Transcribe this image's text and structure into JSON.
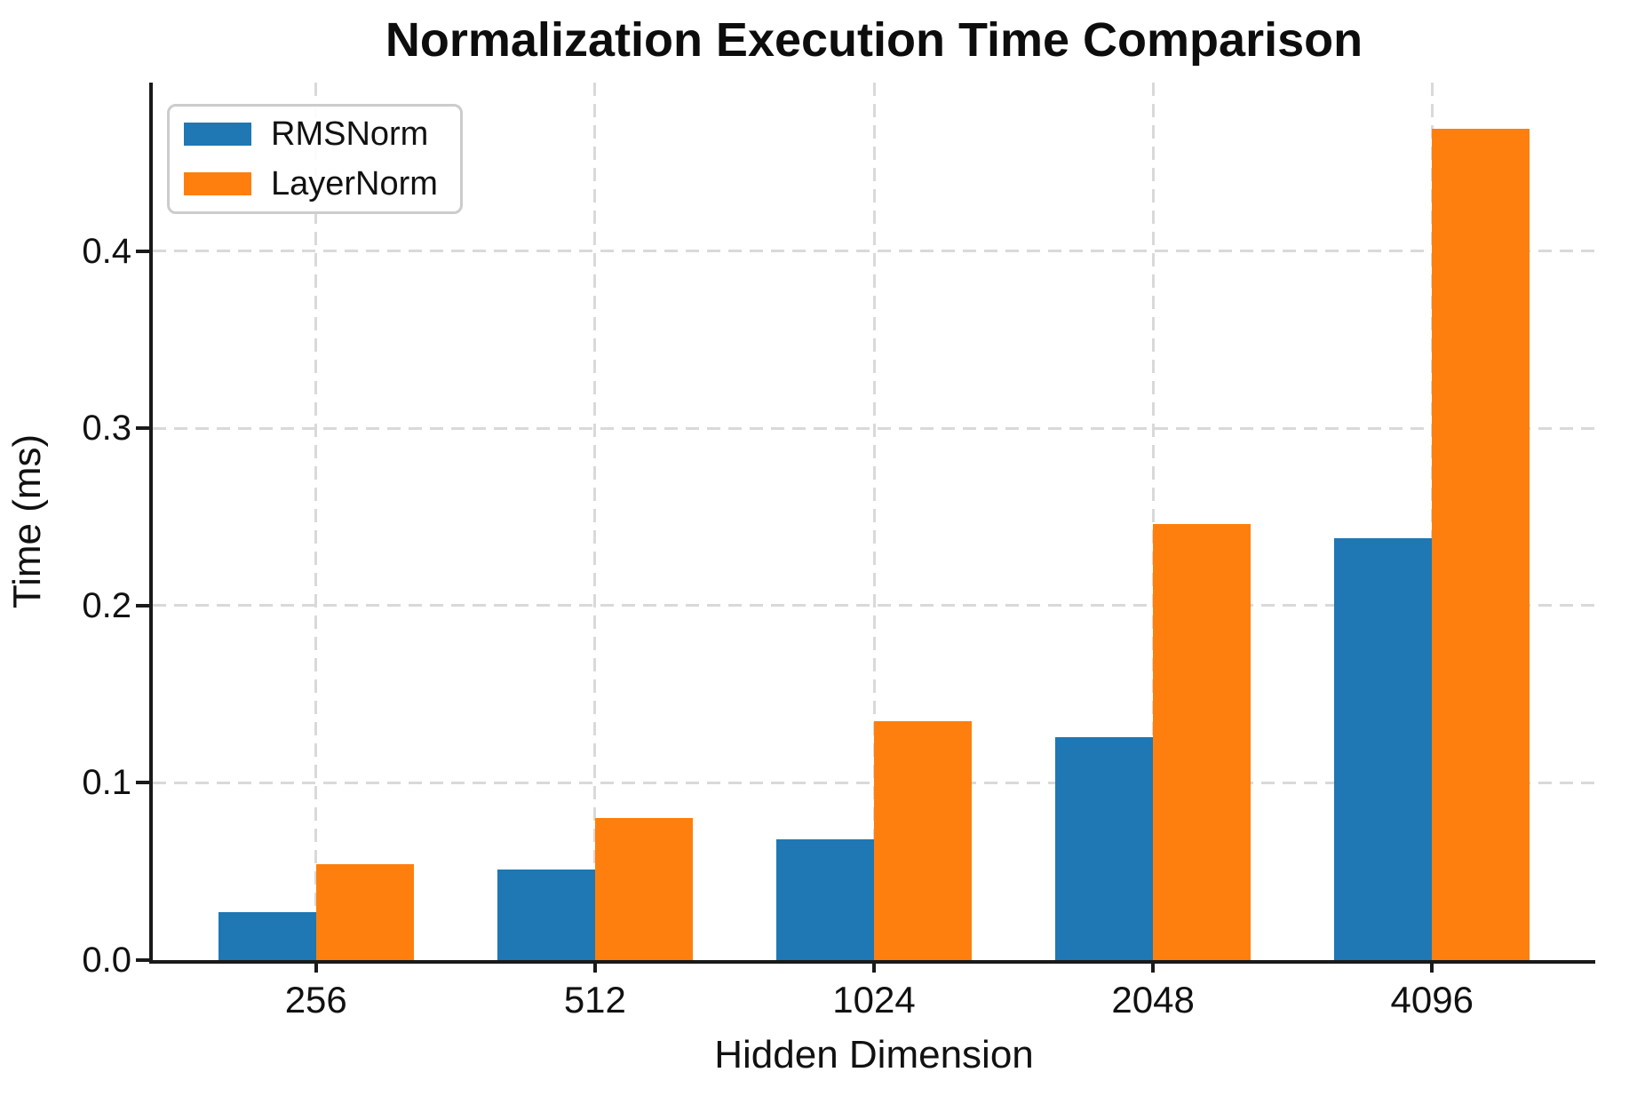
{
  "chart_data": {
    "type": "bar",
    "title": "Normalization Execution Time Comparison",
    "xlabel": "Hidden Dimension",
    "ylabel": "Time (ms)",
    "categories": [
      "256",
      "512",
      "1024",
      "2048",
      "4096"
    ],
    "series": [
      {
        "name": "RMSNorm",
        "color": "#1f77b4",
        "values": [
          0.027,
          0.051,
          0.068,
          0.126,
          0.238
        ]
      },
      {
        "name": "LayerNorm",
        "color": "#ff7f0e",
        "values": [
          0.054,
          0.08,
          0.135,
          0.246,
          0.469
        ]
      }
    ],
    "ytick_labels": [
      "0.0",
      "0.1",
      "0.2",
      "0.3",
      "0.4"
    ],
    "ytick_values": [
      0.0,
      0.1,
      0.2,
      0.3,
      0.4
    ],
    "ylim": [
      0,
      0.495
    ],
    "grid": "dashed-both-axes",
    "gridline_color": "#d9d9d9",
    "legend_position": "upper-left",
    "legend": {
      "entries": [
        {
          "label": "RMSNorm",
          "color": "#1f77b4"
        },
        {
          "label": "LayerNorm",
          "color": "#ff7f0e"
        }
      ]
    }
  }
}
